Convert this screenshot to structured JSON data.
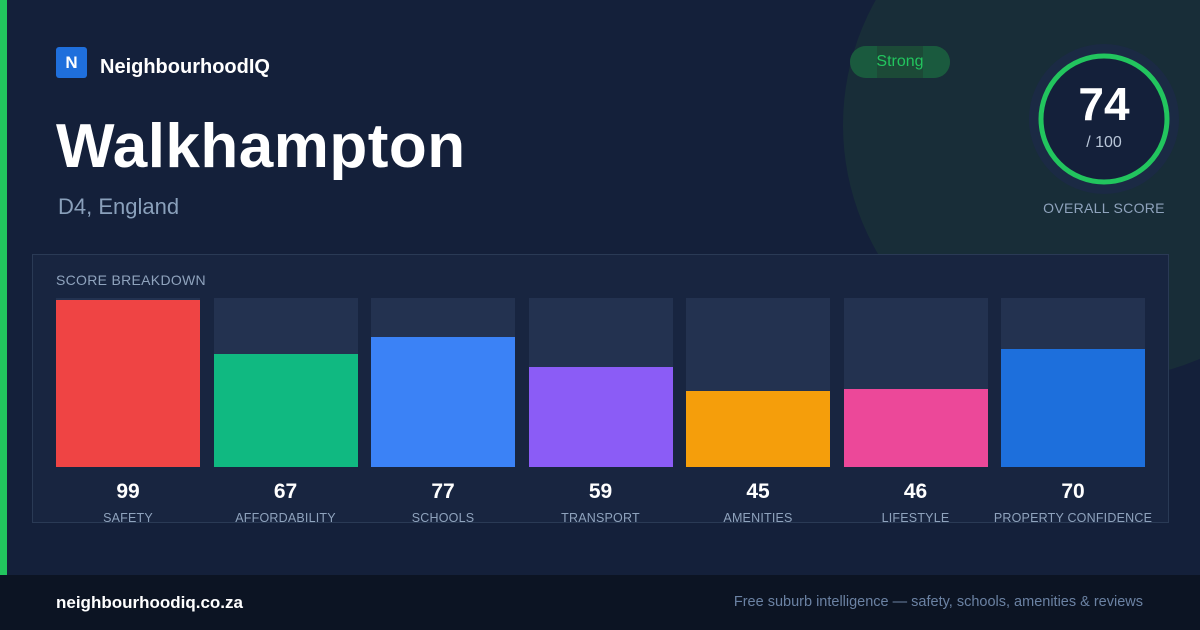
{
  "brand": {
    "logo_letter": "N",
    "name": "NeighbourhoodIQ",
    "accent_color": "#22c55e"
  },
  "suburb": {
    "name": "Walkhampton",
    "location": "D4, England"
  },
  "badge": {
    "label": "Strong",
    "color": "#22c55e"
  },
  "overall": {
    "score": "74",
    "denominator": "/ 100",
    "label": "OVERALL SCORE",
    "value": 74,
    "max": 100
  },
  "breakdown": {
    "title": "SCORE BREAKDOWN",
    "items": [
      {
        "label": "SAFETY",
        "value": 99,
        "value_text": "99",
        "color": "#ef4444"
      },
      {
        "label": "AFFORDABILITY",
        "value": 67,
        "value_text": "67",
        "color": "#10b981"
      },
      {
        "label": "SCHOOLS",
        "value": 77,
        "value_text": "77",
        "color": "#3b82f6"
      },
      {
        "label": "TRANSPORT",
        "value": 59,
        "value_text": "59",
        "color": "#8b5cf6"
      },
      {
        "label": "AMENITIES",
        "value": 45,
        "value_text": "45",
        "color": "#f59e0b"
      },
      {
        "label": "LIFESTYLE",
        "value": 46,
        "value_text": "46",
        "color": "#ec4899"
      },
      {
        "label": "PROPERTY CONFIDENCE",
        "value": 70,
        "value_text": "70",
        "color": "#1d6fdc"
      }
    ]
  },
  "footer": {
    "url": "neighbourhoodiq.co.za",
    "tagline": "Free suburb intelligence — safety, schools, amenities & reviews"
  }
}
